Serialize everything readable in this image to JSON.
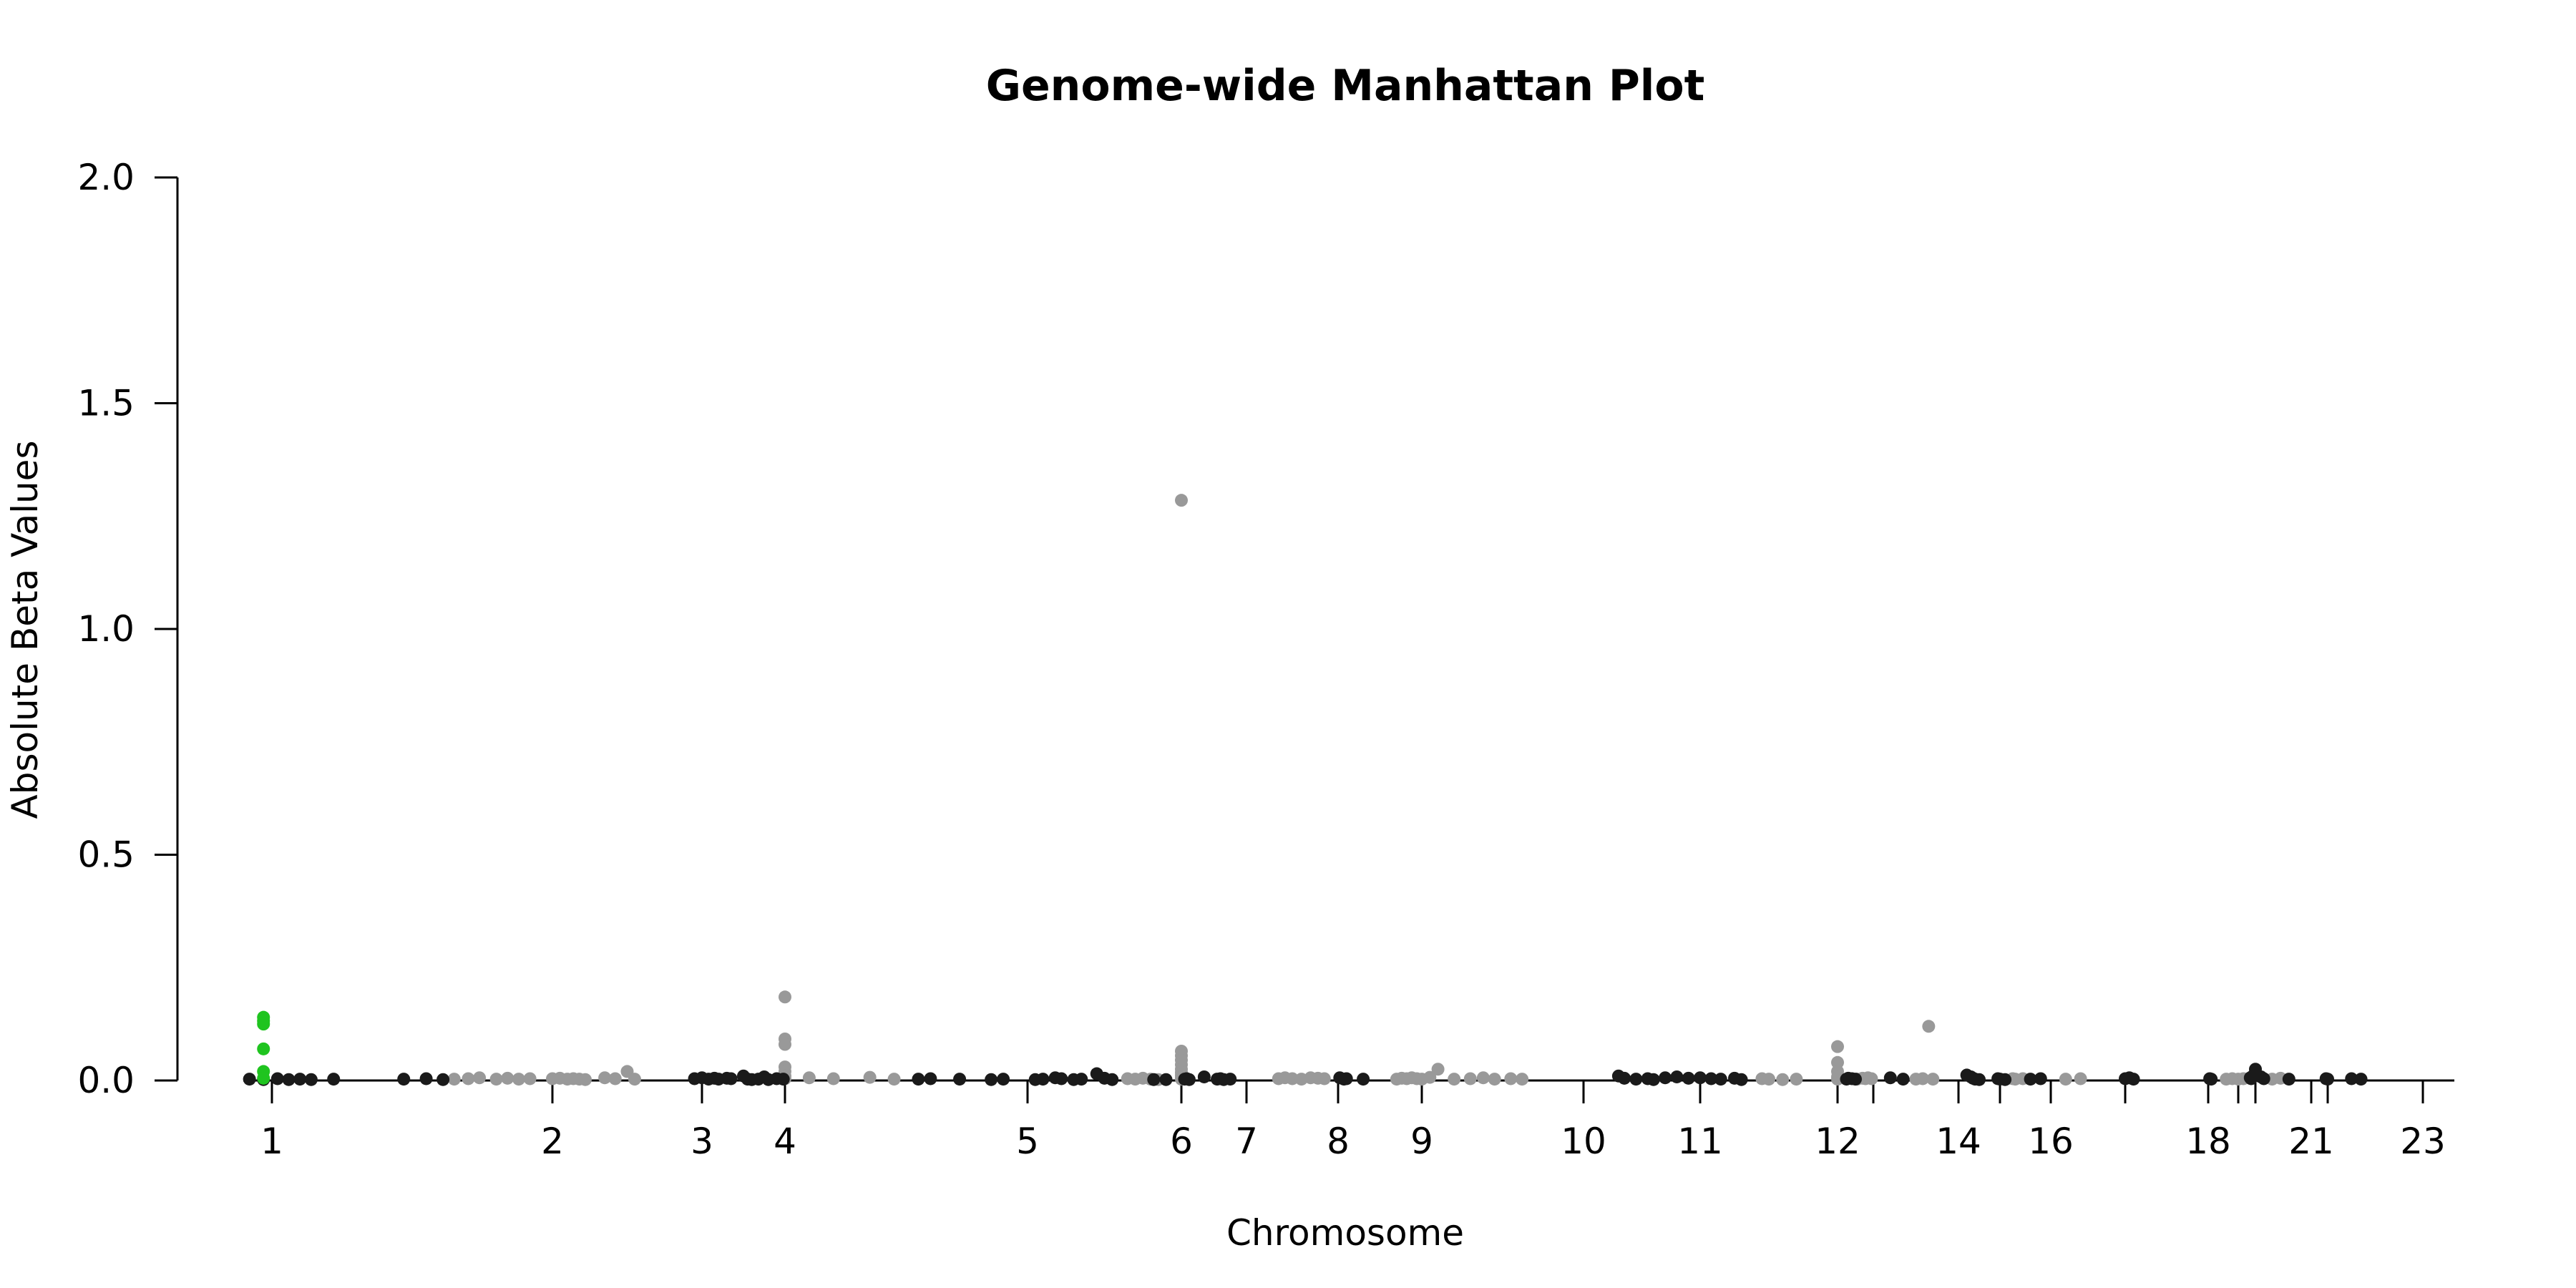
{
  "chart_data": {
    "type": "scatter",
    "title": "Genome-wide Manhattan Plot",
    "xlabel": "Chromosome",
    "ylabel": "Absolute Beta Values",
    "ylim": [
      0,
      2.0
    ],
    "yticks": [
      "0.0",
      "0.5",
      "1.0",
      "1.5",
      "2.0"
    ],
    "yticks_values": [
      0.0,
      0.5,
      1.0,
      1.5,
      2.0
    ],
    "xticks": [
      "1",
      "2",
      "3",
      "4",
      "5",
      "6",
      "7",
      "8",
      "9",
      "10",
      "11",
      "12",
      "",
      "14",
      "",
      "16",
      "",
      "18",
      "",
      "",
      "21",
      "",
      "23"
    ],
    "xtick_positions": [
      1,
      2,
      3,
      4,
      5,
      6,
      7,
      8,
      9,
      10,
      11,
      12,
      13,
      14,
      15,
      16,
      17,
      18,
      19,
      20,
      21,
      22,
      23
    ],
    "grid": false,
    "colors": {
      "highlight": "#1fc41f",
      "dark": "#1a1a1a",
      "light": "#999999"
    },
    "series": [
      {
        "color": "highlight",
        "points": [
          [
            0.97,
            0.14
          ],
          [
            0.97,
            0.132
          ],
          [
            0.97,
            0.125
          ],
          [
            0.97,
            0.07
          ],
          [
            0.97,
            0.02
          ],
          [
            0.97,
            0.005
          ]
        ]
      },
      {
        "color": "dark",
        "points": [
          [
            0.92,
            0.003
          ],
          [
            0.97,
            0.002
          ],
          [
            1.02,
            0.004
          ],
          [
            1.06,
            0.002
          ],
          [
            1.1,
            0.003
          ],
          [
            1.14,
            0.002
          ],
          [
            1.22,
            0.003
          ],
          [
            1.47,
            0.003
          ],
          [
            1.55,
            0.004
          ],
          [
            1.61,
            0.002
          ],
          [
            2.95,
            0.004
          ],
          [
            3.0,
            0.006
          ],
          [
            3.08,
            0.003
          ],
          [
            3.15,
            0.005
          ],
          [
            3.2,
            0.003
          ],
          [
            3.3,
            0.005
          ],
          [
            3.35,
            0.004
          ],
          [
            3.5,
            0.01
          ],
          [
            3.55,
            0.003
          ],
          [
            3.6,
            0.002
          ],
          [
            3.68,
            0.003
          ],
          [
            3.75,
            0.008
          ],
          [
            3.8,
            0.002
          ],
          [
            3.9,
            0.004
          ],
          [
            3.98,
            0.003
          ],
          [
            4.55,
            0.003
          ],
          [
            4.6,
            0.004
          ],
          [
            4.72,
            0.003
          ],
          [
            4.85,
            0.002
          ],
          [
            4.9,
            0.003
          ],
          [
            5.05,
            0.002
          ],
          [
            5.1,
            0.003
          ],
          [
            5.18,
            0.006
          ],
          [
            5.22,
            0.004
          ],
          [
            5.3,
            0.002
          ],
          [
            5.35,
            0.003
          ],
          [
            5.45,
            0.015
          ],
          [
            5.5,
            0.005
          ],
          [
            5.55,
            0.002
          ],
          [
            5.82,
            0.002
          ],
          [
            5.9,
            0.002
          ],
          [
            6.05,
            0.003
          ],
          [
            6.08,
            0.004
          ],
          [
            6.12,
            0.002
          ],
          [
            6.35,
            0.008
          ],
          [
            6.55,
            0.003
          ],
          [
            6.6,
            0.004
          ],
          [
            6.65,
            0.002
          ],
          [
            6.75,
            0.003
          ],
          [
            8.02,
            0.006
          ],
          [
            8.07,
            0.003
          ],
          [
            8.1,
            0.004
          ],
          [
            8.3,
            0.003
          ],
          [
            10.3,
            0.01
          ],
          [
            10.35,
            0.005
          ],
          [
            10.45,
            0.003
          ],
          [
            10.55,
            0.004
          ],
          [
            10.6,
            0.002
          ],
          [
            10.7,
            0.006
          ],
          [
            10.8,
            0.008
          ],
          [
            10.9,
            0.005
          ],
          [
            11.0,
            0.006
          ],
          [
            11.08,
            0.004
          ],
          [
            11.15,
            0.003
          ],
          [
            11.25,
            0.005
          ],
          [
            11.3,
            0.002
          ],
          [
            12.25,
            0.003
          ],
          [
            12.3,
            0.005
          ],
          [
            12.4,
            0.004
          ],
          [
            12.5,
            0.003
          ],
          [
            13.2,
            0.006
          ],
          [
            13.35,
            0.003
          ],
          [
            14.2,
            0.012
          ],
          [
            14.3,
            0.008
          ],
          [
            14.35,
            0.005
          ],
          [
            14.4,
            0.003
          ],
          [
            14.5,
            0.002
          ],
          [
            14.95,
            0.004
          ],
          [
            15.0,
            0.003
          ],
          [
            15.1,
            0.002
          ],
          [
            15.6,
            0.003
          ],
          [
            15.8,
            0.004
          ],
          [
            17.0,
            0.004
          ],
          [
            17.05,
            0.006
          ],
          [
            17.1,
            0.003
          ],
          [
            18.05,
            0.004
          ],
          [
            18.1,
            0.003
          ],
          [
            19.7,
            0.006
          ],
          [
            19.75,
            0.004
          ],
          [
            19.85,
            0.01
          ],
          [
            20.0,
            0.025
          ],
          [
            20.1,
            0.008
          ],
          [
            20.15,
            0.004
          ],
          [
            20.6,
            0.003
          ],
          [
            21.9,
            0.004
          ],
          [
            22.0,
            0.003
          ],
          [
            22.25,
            0.004
          ],
          [
            22.35,
            0.003
          ]
        ]
      },
      {
        "color": "light",
        "points": [
          [
            1.65,
            0.003
          ],
          [
            1.7,
            0.004
          ],
          [
            1.74,
            0.006
          ],
          [
            1.8,
            0.003
          ],
          [
            1.84,
            0.005
          ],
          [
            1.88,
            0.003
          ],
          [
            1.92,
            0.004
          ],
          [
            2.0,
            0.004
          ],
          [
            2.05,
            0.005
          ],
          [
            2.1,
            0.003
          ],
          [
            2.14,
            0.004
          ],
          [
            2.18,
            0.003
          ],
          [
            2.22,
            0.002
          ],
          [
            2.35,
            0.006
          ],
          [
            2.42,
            0.004
          ],
          [
            2.5,
            0.02
          ],
          [
            2.55,
            0.003
          ],
          [
            4.0,
            0.185
          ],
          [
            4.0,
            0.092
          ],
          [
            4.0,
            0.08
          ],
          [
            4.0,
            0.03
          ],
          [
            4.0,
            0.02
          ],
          [
            4.0,
            0.01
          ],
          [
            4.0,
            0.004
          ],
          [
            4.1,
            0.006
          ],
          [
            4.2,
            0.004
          ],
          [
            4.35,
            0.007
          ],
          [
            4.45,
            0.003
          ],
          [
            5.65,
            0.004
          ],
          [
            5.7,
            0.003
          ],
          [
            5.75,
            0.005
          ],
          [
            5.8,
            0.003
          ],
          [
            5.85,
            0.002
          ],
          [
            6.0,
            1.285
          ],
          [
            6.0,
            0.065
          ],
          [
            6.0,
            0.055
          ],
          [
            6.0,
            0.045
          ],
          [
            6.0,
            0.035
          ],
          [
            6.0,
            0.025
          ],
          [
            6.0,
            0.018
          ],
          [
            6.0,
            0.012
          ],
          [
            6.0,
            0.007
          ],
          [
            6.0,
            0.003
          ],
          [
            7.35,
            0.004
          ],
          [
            7.42,
            0.006
          ],
          [
            7.5,
            0.004
          ],
          [
            7.6,
            0.003
          ],
          [
            7.7,
            0.006
          ],
          [
            7.78,
            0.005
          ],
          [
            7.85,
            0.004
          ],
          [
            8.7,
            0.003
          ],
          [
            8.76,
            0.005
          ],
          [
            8.82,
            0.004
          ],
          [
            8.88,
            0.006
          ],
          [
            8.94,
            0.004
          ],
          [
            9.0,
            0.003
          ],
          [
            9.05,
            0.007
          ],
          [
            9.1,
            0.025
          ],
          [
            9.2,
            0.003
          ],
          [
            9.3,
            0.004
          ],
          [
            9.38,
            0.006
          ],
          [
            9.45,
            0.003
          ],
          [
            9.55,
            0.004
          ],
          [
            9.62,
            0.003
          ],
          [
            11.45,
            0.004
          ],
          [
            11.5,
            0.003
          ],
          [
            11.6,
            0.002
          ],
          [
            11.7,
            0.003
          ],
          [
            12.0,
            0.075
          ],
          [
            12.0,
            0.04
          ],
          [
            12.0,
            0.02
          ],
          [
            12.0,
            0.008
          ],
          [
            12.0,
            0.003
          ],
          [
            12.55,
            0.003
          ],
          [
            12.7,
            0.005
          ],
          [
            12.78,
            0.004
          ],
          [
            12.85,
            0.006
          ],
          [
            12.95,
            0.004
          ],
          [
            13.5,
            0.003
          ],
          [
            13.58,
            0.004
          ],
          [
            13.65,
            0.12
          ],
          [
            13.7,
            0.003
          ],
          [
            15.25,
            0.004
          ],
          [
            15.3,
            0.003
          ],
          [
            15.45,
            0.004
          ],
          [
            16.2,
            0.003
          ],
          [
            16.4,
            0.004
          ],
          [
            18.6,
            0.003
          ],
          [
            18.8,
            0.004
          ],
          [
            19.0,
            0.003
          ],
          [
            19.3,
            0.004
          ],
          [
            20.3,
            0.003
          ],
          [
            20.45,
            0.005
          ]
        ]
      }
    ]
  }
}
